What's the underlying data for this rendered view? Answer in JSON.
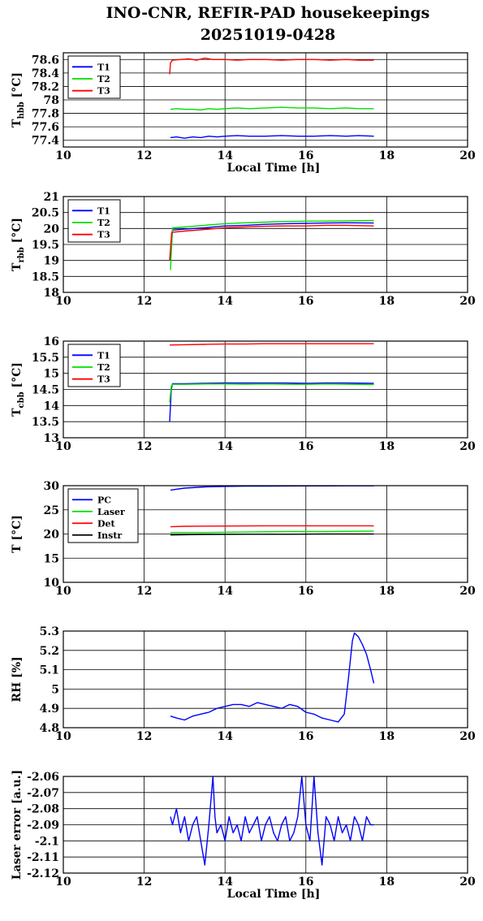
{
  "figure": {
    "title_line1": "INO-CNR, REFIR-PAD housekeepings",
    "title_line2": "20251019-0428"
  },
  "chart_data": [
    {
      "type": "line",
      "ylabel": "T hbb [°C]",
      "ylabel_main": "T",
      "ylabel_sub": "hbb",
      "ylabel_unit": " [°C]",
      "xlabel": "Local Time [h]",
      "xlim": [
        10,
        20
      ],
      "ylim": [
        77.3,
        78.7
      ],
      "xticks": [
        10,
        12,
        14,
        16,
        18,
        20
      ],
      "yticks": [
        77.4,
        77.6,
        77.8,
        78,
        78.2,
        78.4,
        78.6
      ],
      "yticklabels": [
        "77.4",
        "77.6",
        "77.8",
        "78",
        "78.2",
        "78.4",
        "78.6"
      ],
      "grid": true,
      "legend_position": "top-left",
      "series": [
        {
          "name": "T1",
          "color": "#0000ff",
          "x": [
            12.65,
            12.8,
            13.0,
            13.2,
            13.4,
            13.6,
            13.8,
            14.0,
            14.3,
            14.6,
            15.0,
            15.4,
            15.8,
            16.2,
            16.6,
            17.0,
            17.3,
            17.68
          ],
          "y": [
            77.44,
            77.45,
            77.43,
            77.45,
            77.44,
            77.46,
            77.45,
            77.46,
            77.47,
            77.46,
            77.46,
            77.47,
            77.46,
            77.46,
            77.47,
            77.46,
            77.47,
            77.46
          ]
        },
        {
          "name": "T2",
          "color": "#00dd00",
          "x": [
            12.65,
            12.8,
            13.0,
            13.2,
            13.4,
            13.6,
            13.8,
            14.0,
            14.3,
            14.6,
            15.0,
            15.4,
            15.8,
            16.2,
            16.6,
            17.0,
            17.3,
            17.68
          ],
          "y": [
            77.86,
            77.87,
            77.86,
            77.86,
            77.85,
            77.87,
            77.86,
            77.87,
            77.88,
            77.87,
            77.88,
            77.89,
            77.88,
            77.88,
            77.87,
            77.88,
            77.87,
            77.87
          ]
        },
        {
          "name": "T3",
          "color": "#ff0000",
          "x": [
            12.63,
            12.65,
            12.7,
            12.9,
            13.1,
            13.3,
            13.5,
            13.7,
            14.0,
            14.3,
            14.6,
            15.0,
            15.4,
            15.8,
            16.2,
            16.6,
            17.0,
            17.3,
            17.68
          ],
          "y": [
            78.38,
            78.55,
            78.59,
            78.6,
            78.61,
            78.59,
            78.62,
            78.6,
            78.6,
            78.59,
            78.6,
            78.6,
            78.59,
            78.6,
            78.6,
            78.59,
            78.6,
            78.59,
            78.59
          ]
        }
      ]
    },
    {
      "type": "line",
      "ylabel": "T rbb [°C]",
      "ylabel_main": "T",
      "ylabel_sub": "rbb",
      "ylabel_unit": " [°C]",
      "xlabel": "",
      "xlim": [
        10,
        20
      ],
      "ylim": [
        18,
        21
      ],
      "xticks": [
        10,
        12,
        14,
        16,
        18,
        20
      ],
      "yticks": [
        18,
        18.5,
        19,
        19.5,
        20,
        20.5,
        21
      ],
      "yticklabels": [
        "18",
        "18.5",
        "19",
        "19.5",
        "20",
        "20.5",
        "21"
      ],
      "grid": true,
      "legend_position": "top-left",
      "series": [
        {
          "name": "T1",
          "color": "#0000ff",
          "x": [
            12.65,
            12.7,
            13.0,
            13.5,
            14.0,
            14.5,
            15.0,
            15.5,
            16.0,
            16.5,
            17.0,
            17.68
          ],
          "y": [
            19.0,
            19.95,
            19.98,
            20.02,
            20.08,
            20.1,
            20.13,
            20.15,
            20.16,
            20.17,
            20.18,
            20.17
          ]
        },
        {
          "name": "T2",
          "color": "#00dd00",
          "x": [
            12.65,
            12.7,
            13.0,
            13.5,
            14.0,
            14.5,
            15.0,
            15.5,
            16.0,
            16.5,
            17.0,
            17.68
          ],
          "y": [
            18.7,
            20.02,
            20.05,
            20.1,
            20.15,
            20.18,
            20.2,
            20.22,
            20.23,
            20.23,
            20.24,
            20.25
          ]
        },
        {
          "name": "T3",
          "color": "#ff0000",
          "x": [
            12.63,
            12.68,
            13.0,
            13.5,
            14.0,
            14.5,
            15.0,
            15.5,
            16.0,
            16.5,
            17.0,
            17.68
          ],
          "y": [
            19.0,
            19.88,
            19.92,
            19.97,
            20.02,
            20.05,
            20.07,
            20.08,
            20.08,
            20.1,
            20.1,
            20.08
          ]
        }
      ]
    },
    {
      "type": "line",
      "ylabel": "T cbb [°C]",
      "ylabel_main": "T",
      "ylabel_sub": "cbb",
      "ylabel_unit": " [°C]",
      "xlabel": "",
      "xlim": [
        10,
        20
      ],
      "ylim": [
        13,
        16
      ],
      "xticks": [
        10,
        12,
        14,
        16,
        18,
        20
      ],
      "yticks": [
        13,
        13.5,
        14,
        14.5,
        15,
        15.5,
        16
      ],
      "yticklabels": [
        "13",
        "13.5",
        "14",
        "14.5",
        "15",
        "15.5",
        "16"
      ],
      "grid": true,
      "legend_position": "top-left",
      "series": [
        {
          "name": "T1",
          "color": "#0000ff",
          "x": [
            12.63,
            12.67,
            12.7,
            13.0,
            13.5,
            14.0,
            14.5,
            15.0,
            15.5,
            16.0,
            16.5,
            17.0,
            17.68
          ],
          "y": [
            13.5,
            14.5,
            14.68,
            14.68,
            14.69,
            14.7,
            14.7,
            14.7,
            14.7,
            14.69,
            14.7,
            14.7,
            14.69
          ]
        },
        {
          "name": "T2",
          "color": "#00dd00",
          "x": [
            12.63,
            12.67,
            12.7,
            13.0,
            13.5,
            14.0,
            14.5,
            15.0,
            15.5,
            16.0,
            16.5,
            17.0,
            17.68
          ],
          "y": [
            14.1,
            14.6,
            14.66,
            14.66,
            14.67,
            14.67,
            14.66,
            14.67,
            14.66,
            14.66,
            14.67,
            14.66,
            14.65
          ]
        },
        {
          "name": "T3",
          "color": "#ff0000",
          "x": [
            12.63,
            13.0,
            13.5,
            14.0,
            14.5,
            15.0,
            15.5,
            16.0,
            16.5,
            17.0,
            17.68
          ],
          "y": [
            15.88,
            15.89,
            15.9,
            15.91,
            15.91,
            15.92,
            15.92,
            15.92,
            15.92,
            15.92,
            15.92
          ]
        }
      ]
    },
    {
      "type": "line",
      "ylabel": "T [°C]",
      "ylabel_main": "T",
      "ylabel_sub": "",
      "ylabel_unit": " [°C]",
      "xlabel": "",
      "xlim": [
        10,
        20
      ],
      "ylim": [
        10,
        30
      ],
      "xticks": [
        10,
        12,
        14,
        16,
        18,
        20
      ],
      "yticks": [
        10,
        15,
        20,
        25,
        30
      ],
      "yticklabels": [
        "10",
        "15",
        "20",
        "25",
        "30"
      ],
      "grid": true,
      "legend_position": "top-left",
      "series": [
        {
          "name": "PC",
          "color": "#0000ff",
          "x": [
            12.65,
            13.0,
            13.5,
            14.0,
            14.5,
            15.0,
            15.5,
            16.0,
            16.5,
            17.0,
            17.68
          ],
          "y": [
            29.1,
            29.5,
            29.75,
            29.85,
            29.9,
            29.92,
            29.94,
            29.95,
            29.95,
            29.96,
            29.96
          ]
        },
        {
          "name": "Laser",
          "color": "#00dd00",
          "x": [
            12.65,
            13.5,
            14.5,
            15.5,
            16.5,
            17.68
          ],
          "y": [
            20.3,
            20.3,
            20.4,
            20.5,
            20.5,
            20.6
          ]
        },
        {
          "name": "Det",
          "color": "#ff0000",
          "x": [
            12.65,
            13.0,
            14.0,
            15.0,
            16.0,
            17.0,
            17.68
          ],
          "y": [
            21.5,
            21.6,
            21.65,
            21.7,
            21.7,
            21.7,
            21.7
          ]
        },
        {
          "name": "Instr",
          "color": "#000000",
          "x": [
            12.65,
            13.5,
            14.5,
            15.5,
            16.5,
            17.68
          ],
          "y": [
            19.8,
            19.9,
            19.95,
            19.95,
            20.0,
            20.0
          ]
        }
      ]
    },
    {
      "type": "line",
      "ylabel": "RH [%]",
      "ylabel_main": "RH",
      "ylabel_sub": "",
      "ylabel_unit": " [%]",
      "xlabel": "",
      "xlim": [
        10,
        20
      ],
      "ylim": [
        4.8,
        5.3
      ],
      "xticks": [
        10,
        12,
        14,
        16,
        18,
        20
      ],
      "yticks": [
        4.8,
        4.9,
        5,
        5.1,
        5.2,
        5.3
      ],
      "yticklabels": [
        "4.8",
        "4.9",
        "5",
        "5.1",
        "5.2",
        "5.3"
      ],
      "grid": true,
      "legend_position": "none",
      "series": [
        {
          "name": "",
          "color": "#0000ff",
          "x": [
            12.65,
            12.8,
            13.0,
            13.2,
            13.4,
            13.6,
            13.8,
            14.0,
            14.2,
            14.4,
            14.6,
            14.8,
            15.0,
            15.2,
            15.4,
            15.6,
            15.8,
            16.0,
            16.2,
            16.4,
            16.6,
            16.8,
            16.95,
            17.05,
            17.15,
            17.2,
            17.3,
            17.4,
            17.5,
            17.6,
            17.68
          ],
          "y": [
            4.86,
            4.85,
            4.84,
            4.86,
            4.87,
            4.88,
            4.9,
            4.91,
            4.92,
            4.92,
            4.91,
            4.93,
            4.92,
            4.91,
            4.9,
            4.92,
            4.91,
            4.88,
            4.87,
            4.85,
            4.84,
            4.83,
            4.87,
            5.05,
            5.25,
            5.29,
            5.27,
            5.23,
            5.18,
            5.1,
            5.03
          ]
        }
      ]
    },
    {
      "type": "line",
      "ylabel": "Laser error [a.u.]",
      "ylabel_main": "Laser error",
      "ylabel_sub": "",
      "ylabel_unit": " [a.u.]",
      "xlabel": "Local Time [h]",
      "xlim": [
        10,
        20
      ],
      "ylim": [
        -2.12,
        -2.06
      ],
      "xticks": [
        10,
        12,
        14,
        16,
        18,
        20
      ],
      "yticks": [
        -2.12,
        -2.11,
        -2.1,
        -2.09,
        -2.08,
        -2.07,
        -2.06
      ],
      "yticklabels": [
        "-2.12",
        "-2.11",
        "-2.1",
        "-2.09",
        "-2.08",
        "-2.07",
        "-2.06"
      ],
      "grid": true,
      "legend_position": "none",
      "series": [
        {
          "name": "",
          "color": "#0000ff",
          "x": [
            12.65,
            12.7,
            12.8,
            12.9,
            13.0,
            13.1,
            13.2,
            13.3,
            13.4,
            13.5,
            13.6,
            13.7,
            13.75,
            13.8,
            13.9,
            14.0,
            14.1,
            14.2,
            14.3,
            14.4,
            14.5,
            14.6,
            14.7,
            14.8,
            14.9,
            15.0,
            15.1,
            15.2,
            15.3,
            15.4,
            15.5,
            15.6,
            15.7,
            15.8,
            15.9,
            16.0,
            16.1,
            16.2,
            16.3,
            16.4,
            16.5,
            16.6,
            16.7,
            16.8,
            16.9,
            17.0,
            17.1,
            17.2,
            17.3,
            17.4,
            17.5,
            17.6,
            17.68
          ],
          "y": [
            -2.085,
            -2.09,
            -2.08,
            -2.095,
            -2.085,
            -2.1,
            -2.09,
            -2.085,
            -2.1,
            -2.115,
            -2.09,
            -2.06,
            -2.085,
            -2.095,
            -2.09,
            -2.1,
            -2.085,
            -2.095,
            -2.09,
            -2.1,
            -2.085,
            -2.095,
            -2.09,
            -2.085,
            -2.1,
            -2.09,
            -2.085,
            -2.095,
            -2.1,
            -2.09,
            -2.085,
            -2.1,
            -2.095,
            -2.085,
            -2.06,
            -2.09,
            -2.1,
            -2.06,
            -2.095,
            -2.115,
            -2.085,
            -2.09,
            -2.1,
            -2.085,
            -2.095,
            -2.09,
            -2.1,
            -2.085,
            -2.09,
            -2.1,
            -2.085,
            -2.09,
            -2.09
          ]
        }
      ]
    }
  ]
}
